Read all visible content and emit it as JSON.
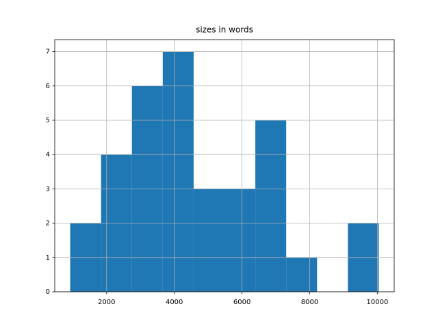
{
  "chart_data": {
    "type": "histogram",
    "title": "sizes in words",
    "bins": [
      924,
      1836,
      2747,
      3659,
      4571,
      5483,
      6394,
      7306,
      8218,
      9129,
      10041
    ],
    "values": [
      2,
      4,
      6,
      7,
      3,
      3,
      5,
      1,
      0,
      2
    ],
    "color": "#1f77b4",
    "xlim": [
      468,
      10497
    ],
    "xticks": [
      2000,
      4000,
      6000,
      8000,
      10000
    ],
    "ylim": [
      0,
      7.35
    ],
    "yticks": [
      0,
      1,
      2,
      3,
      4,
      5,
      6,
      7
    ],
    "grid": true
  }
}
